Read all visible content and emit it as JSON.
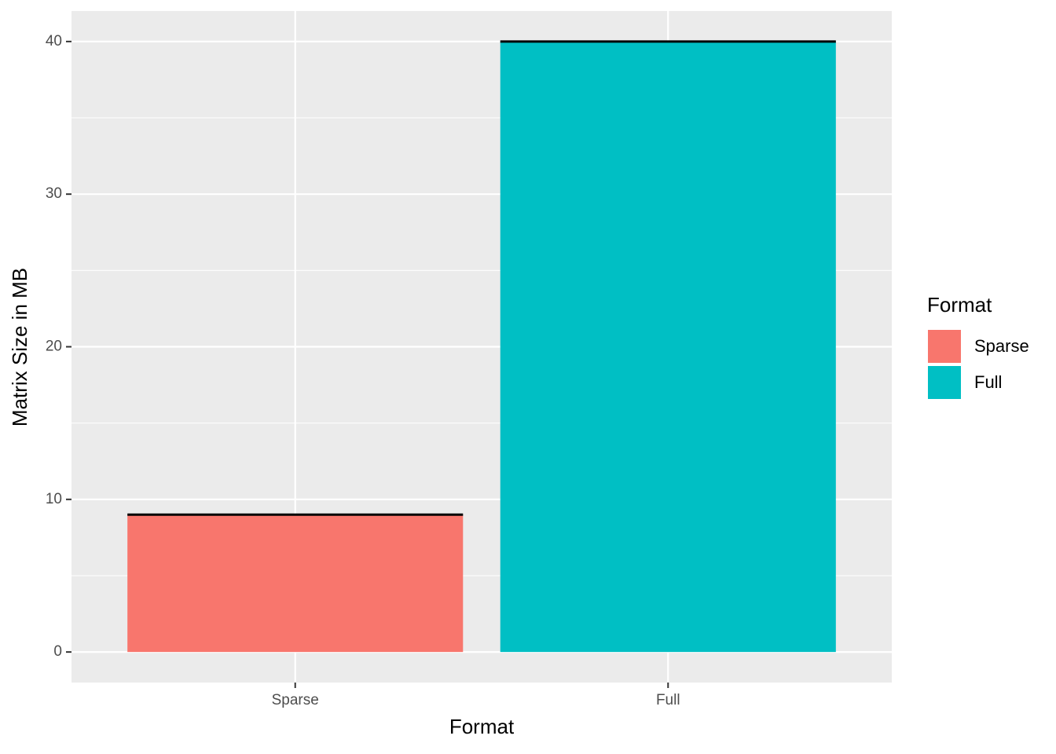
{
  "chart_data": {
    "type": "bar",
    "x_label": "Format",
    "y_label": "Matrix Size in MB",
    "categories": [
      "Sparse",
      "Full"
    ],
    "values": [
      9.0,
      40.0
    ],
    "colors": [
      "#F8766D",
      "#00BFC4"
    ],
    "ylim": [
      -2,
      42
    ],
    "yticks": [
      0,
      10,
      20,
      30,
      40
    ],
    "grid": true,
    "legend": {
      "title": "Format",
      "position": "right"
    }
  }
}
